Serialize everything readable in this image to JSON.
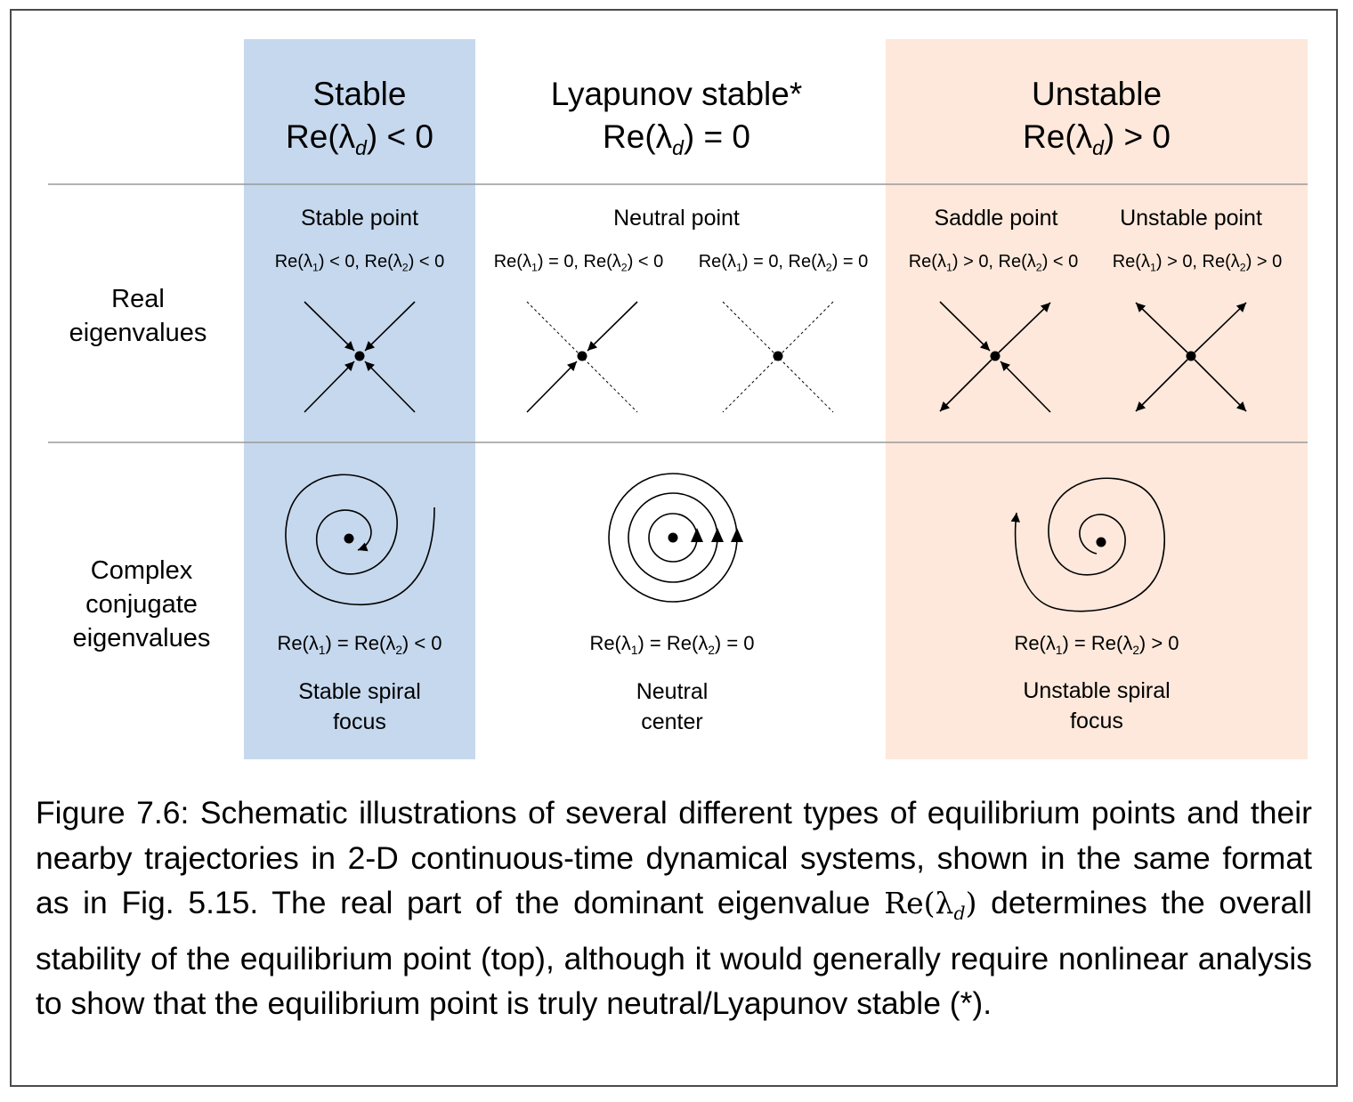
{
  "columns": {
    "stable": {
      "title": "Stable",
      "cond_pre": "Re(λ",
      "cond_sub": "d",
      "cond_post": ") < 0",
      "color": "#c6d8ee"
    },
    "lyapunov": {
      "title": "Lyapunov stable*",
      "cond_pre": "Re(λ",
      "cond_sub": "d",
      "cond_post": ") = 0"
    },
    "unstable": {
      "title": "Unstable",
      "cond_pre": "Re(λ",
      "cond_sub": "d",
      "cond_post": ") > 0",
      "color": "#fde8db"
    }
  },
  "rows": {
    "real": {
      "line1": "Real",
      "line2": "eigenvalues"
    },
    "complex": {
      "line1": "Complex",
      "line2": "conjugate",
      "line3": "eigenvalues"
    }
  },
  "real_cells": {
    "stable_point": {
      "label": "Stable point",
      "c1": "Re(λ",
      "s1": "1",
      "c2": ") < 0, Re(λ",
      "s2": "2",
      "c3": ") < 0"
    },
    "neutral_point": {
      "label": "Neutral point"
    },
    "neutral_a": {
      "c1": "Re(λ",
      "s1": "1",
      "c2": ") = 0, Re(λ",
      "s2": "2",
      "c3": ") < 0"
    },
    "neutral_b": {
      "c1": "Re(λ",
      "s1": "1",
      "c2": ") = 0, Re(λ",
      "s2": "2",
      "c3": ") = 0"
    },
    "saddle_point": {
      "label": "Saddle point",
      "c1": "Re(λ",
      "s1": "1",
      "c2": ") > 0, Re(λ",
      "s2": "2",
      "c3": ") < 0"
    },
    "unstable_point": {
      "label": "Unstable point",
      "c1": "Re(λ",
      "s1": "1",
      "c2": ") > 0, Re(λ",
      "s2": "2",
      "c3": ") > 0"
    }
  },
  "complex_cells": {
    "stable": {
      "c1": "Re(λ",
      "s1": "1",
      "c2": ") = Re(λ",
      "s2": "2",
      "c3": ") < 0",
      "name1": "Stable spiral",
      "name2": "focus"
    },
    "neutral": {
      "c1": "Re(λ",
      "s1": "1",
      "c2": ") = Re(λ",
      "s2": "2",
      "c3": ") = 0",
      "name1": "Neutral",
      "name2": "center"
    },
    "unstable": {
      "c1": "Re(λ",
      "s1": "1",
      "c2": ") = Re(λ",
      "s2": "2",
      "c3": ") > 0",
      "name1": "Unstable spiral",
      "name2": "focus"
    }
  },
  "caption": {
    "part1": "Figure 7.6: Schematic illustrations of several different types of equilibrium points and their nearby trajectories in 2-D continuous-time dynamical systems, shown in the same format as in Fig. 5.15.  The real part of the dominant eigenvalue ",
    "math_pre": "Re(λ",
    "math_sub": "d",
    "math_post": ")",
    "part2": " determines the overall stability of the equilibrium point (top), although it would generally require nonlinear analysis to show that the equilibrium point is truly neutral/Lyapunov stable (*)."
  }
}
